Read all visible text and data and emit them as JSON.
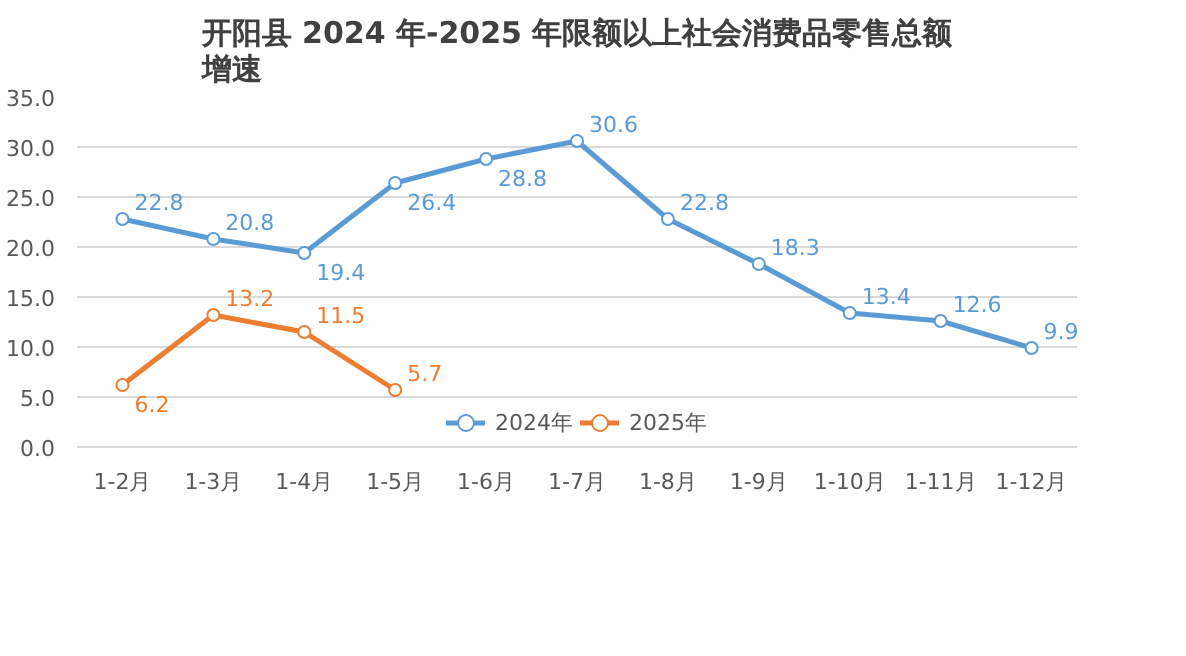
{
  "chart_data": {
    "type": "line",
    "title": "开阳县 2024 年-2025 年限额以上社会消费品零售总额增速",
    "categories": [
      "1-2月",
      "1-3月",
      "1-4月",
      "1-5月",
      "1-6月",
      "1-7月",
      "1-8月",
      "1-9月",
      "1-10月",
      "1-11月",
      "1-12月"
    ],
    "series": [
      {
        "name": "2024年",
        "color": "#5b9bd5",
        "values": [
          22.8,
          20.8,
          19.4,
          26.4,
          28.8,
          30.6,
          22.8,
          18.3,
          13.4,
          12.6,
          9.9
        ]
      },
      {
        "name": "2025年",
        "color": "#ed7d31",
        "values": [
          6.2,
          13.2,
          11.5,
          5.7,
          null,
          null,
          null,
          null,
          null,
          null,
          null
        ]
      }
    ],
    "ylim": [
      0,
      35
    ],
    "yticks": [
      {
        "value": 0,
        "label": "0.0"
      },
      {
        "value": 5,
        "label": "5.0"
      },
      {
        "value": 10,
        "label": "10.0"
      },
      {
        "value": 15,
        "label": "15.0"
      },
      {
        "value": 20,
        "label": "20.0"
      },
      {
        "value": 25,
        "label": "25.0"
      },
      {
        "value": 30,
        "label": "30.0"
      },
      {
        "value": 35,
        "label": "35.0"
      }
    ],
    "grid": "y",
    "legend": "bottom",
    "marker": "circle",
    "line_style": "solid",
    "data_labels": true
  }
}
